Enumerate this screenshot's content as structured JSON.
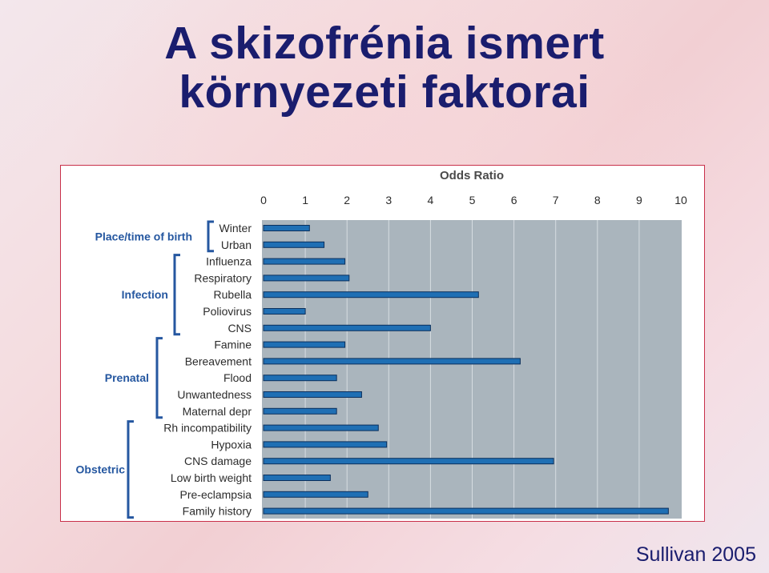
{
  "slide": {
    "title_line1": "A skizofrénia ismert",
    "title_line2": "környezeti faktorai",
    "source": "Sullivan 2005"
  },
  "chart_data": {
    "type": "bar",
    "orientation": "horizontal",
    "title": "Odds Ratio",
    "xlim": [
      0,
      10
    ],
    "x_ticks": [
      "0",
      "1",
      "2",
      "3",
      "4",
      "5",
      "6",
      "7",
      "8",
      "9",
      "10"
    ],
    "grid": true,
    "categories": [
      "Winter",
      "Urban",
      "Influenza",
      "Respiratory",
      "Rubella",
      "Poliovirus",
      "CNS",
      "Famine",
      "Bereavement",
      "Flood",
      "Unwantedness",
      "Maternal depr",
      "Rh incompatibility",
      "Hypoxia",
      "CNS damage",
      "Low birth weight",
      "Pre-eclampsia",
      "Family history"
    ],
    "values": [
      1.1,
      1.45,
      1.95,
      2.05,
      5.15,
      1.0,
      4.0,
      1.95,
      6.15,
      1.75,
      2.35,
      1.75,
      2.75,
      2.95,
      6.95,
      1.6,
      2.5,
      9.7
    ],
    "groups": [
      {
        "label": "Place/time of birth",
        "start": 0,
        "end": 1
      },
      {
        "label": "Infection",
        "start": 2,
        "end": 6
      },
      {
        "label": "Prenatal",
        "start": 7,
        "end": 11
      },
      {
        "label": "Obstetric",
        "start": 12,
        "end": 17
      }
    ],
    "colors": {
      "bar": "#1f6fb4",
      "bar_edge": "#0b2f5c",
      "plot_bg": "#aab5bd",
      "grid": "#d6dde2",
      "text": "#2c2c2c",
      "group_text": "#2557a0"
    }
  }
}
